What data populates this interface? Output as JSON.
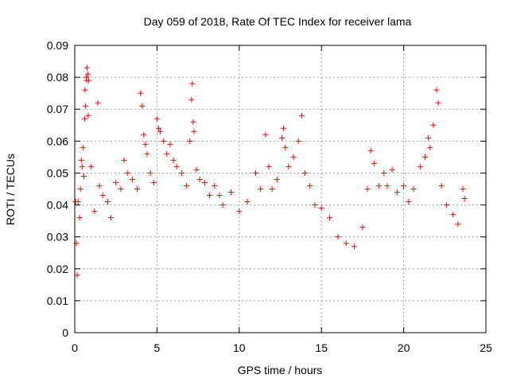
{
  "chart_data": {
    "type": "scatter",
    "title": "Day 059 of 2018, Rate Of TEC Index for receiver lama",
    "xlabel": "GPS time / hours",
    "ylabel": "ROTI / TECUs",
    "xlim": [
      0,
      25
    ],
    "ylim": [
      0,
      0.09
    ],
    "x_ticks": [
      "0",
      "5",
      "10",
      "15",
      "20",
      "25"
    ],
    "y_ticks": [
      "0",
      "0.01",
      "0.02",
      "0.03",
      "0.04",
      "0.05",
      "0.06",
      "0.07",
      "0.08",
      "0.09"
    ],
    "grid": true,
    "legend": "none",
    "marker": "+",
    "series_color": "#ff0000",
    "series": [
      {
        "points": [
          [
            0.05,
            0.041
          ],
          [
            0.1,
            0.028
          ],
          [
            0.15,
            0.018
          ],
          [
            0.2,
            0.041
          ],
          [
            0.3,
            0.036
          ],
          [
            0.35,
            0.045
          ],
          [
            0.4,
            0.054
          ],
          [
            0.45,
            0.052
          ],
          [
            0.5,
            0.058
          ],
          [
            0.55,
            0.049
          ],
          [
            0.6,
            0.067
          ],
          [
            0.62,
            0.076
          ],
          [
            0.65,
            0.071
          ],
          [
            0.7,
            0.08
          ],
          [
            0.72,
            0.079
          ],
          [
            0.75,
            0.083
          ],
          [
            0.8,
            0.081
          ],
          [
            0.82,
            0.068
          ],
          [
            0.85,
            0.079
          ],
          [
            1.0,
            0.052
          ],
          [
            1.2,
            0.038
          ],
          [
            1.4,
            0.072
          ],
          [
            1.5,
            0.046
          ],
          [
            1.7,
            0.043
          ],
          [
            2.0,
            0.041
          ],
          [
            2.2,
            0.036
          ],
          [
            2.5,
            0.047
          ],
          [
            2.8,
            0.045
          ],
          [
            3.0,
            0.054
          ],
          [
            3.2,
            0.05
          ],
          [
            3.5,
            0.048
          ],
          [
            3.8,
            0.045
          ],
          [
            4.0,
            0.075
          ],
          [
            4.1,
            0.071
          ],
          [
            4.2,
            0.062
          ],
          [
            4.3,
            0.059
          ],
          [
            4.4,
            0.056
          ],
          [
            4.6,
            0.05
          ],
          [
            4.8,
            0.047
          ],
          [
            5.0,
            0.067
          ],
          [
            5.1,
            0.064
          ],
          [
            5.2,
            0.063
          ],
          [
            5.4,
            0.06
          ],
          [
            5.6,
            0.056
          ],
          [
            5.8,
            0.059
          ],
          [
            6.0,
            0.054
          ],
          [
            6.2,
            0.052
          ],
          [
            6.5,
            0.05
          ],
          [
            6.8,
            0.046
          ],
          [
            7.0,
            0.06
          ],
          [
            7.1,
            0.073
          ],
          [
            7.15,
            0.078
          ],
          [
            7.2,
            0.066
          ],
          [
            7.25,
            0.063
          ],
          [
            7.4,
            0.051
          ],
          [
            7.6,
            0.048
          ],
          [
            7.9,
            0.047
          ],
          [
            8.2,
            0.043
          ],
          [
            8.5,
            0.046
          ],
          [
            8.8,
            0.043
          ],
          [
            9.0,
            0.04
          ],
          [
            9.5,
            0.044
          ],
          [
            10.0,
            0.038
          ],
          [
            10.5,
            0.041
          ],
          [
            11.0,
            0.05
          ],
          [
            11.3,
            0.045
          ],
          [
            11.6,
            0.062
          ],
          [
            11.8,
            0.052
          ],
          [
            12.0,
            0.045
          ],
          [
            12.3,
            0.048
          ],
          [
            12.6,
            0.061
          ],
          [
            12.7,
            0.064
          ],
          [
            12.8,
            0.058
          ],
          [
            13.0,
            0.052
          ],
          [
            13.3,
            0.055
          ],
          [
            13.6,
            0.06
          ],
          [
            13.8,
            0.068
          ],
          [
            14.0,
            0.05
          ],
          [
            14.3,
            0.046
          ],
          [
            14.6,
            0.04
          ],
          [
            15.0,
            0.039
          ],
          [
            15.5,
            0.036
          ],
          [
            16.0,
            0.03
          ],
          [
            16.5,
            0.028
          ],
          [
            17.0,
            0.027
          ],
          [
            17.5,
            0.033
          ],
          [
            17.8,
            0.045
          ],
          [
            18.0,
            0.057
          ],
          [
            18.2,
            0.053
          ],
          [
            18.5,
            0.046
          ],
          [
            18.8,
            0.05
          ],
          [
            19.0,
            0.046
          ],
          [
            19.3,
            0.051
          ],
          [
            19.6,
            0.044
          ],
          [
            20.0,
            0.046
          ],
          [
            20.3,
            0.041
          ],
          [
            20.6,
            0.045
          ],
          [
            21.0,
            0.052
          ],
          [
            21.3,
            0.055
          ],
          [
            21.5,
            0.061
          ],
          [
            21.6,
            0.058
          ],
          [
            21.8,
            0.065
          ],
          [
            22.0,
            0.076
          ],
          [
            22.1,
            0.072
          ],
          [
            22.3,
            0.046
          ],
          [
            22.6,
            0.04
          ],
          [
            23.0,
            0.037
          ],
          [
            23.3,
            0.034
          ],
          [
            23.6,
            0.045
          ],
          [
            23.7,
            0.042
          ]
        ]
      }
    ]
  }
}
